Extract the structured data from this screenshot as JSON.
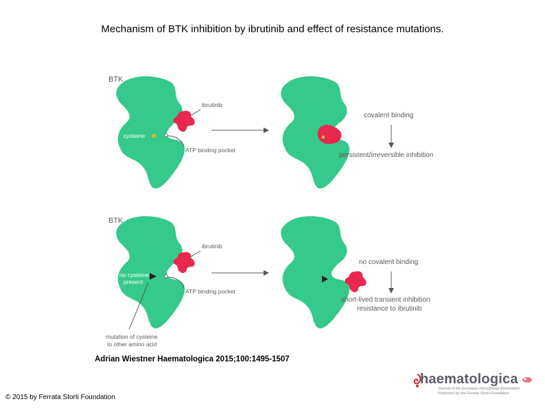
{
  "title": "Mechanism of BTK inhibition by ibrutinib and effect of resistance mutations.",
  "top_panel": {
    "protein_label": "BTK",
    "drug_label": "ibrutinib",
    "site_label": "cysteine",
    "pocket_label": "ATP binding pocket",
    "result_top": "covalent binding",
    "result_bottom": "persistent/irreversible inhibition"
  },
  "bottom_panel": {
    "protein_label": "BTK",
    "drug_label": "ibrutinib",
    "site_label_line1": "no cysteine",
    "site_label_line2": "present",
    "pocket_label": "ATP binding pocket",
    "mutation_line1": "mutation of cysteine",
    "mutation_line2": "to other amino acid",
    "result_top": "no covalent binding",
    "result_bottom_line1": "short-lived transient inhibition",
    "result_bottom_line2": "resistance to ibrutinib"
  },
  "citation": "Adrian Wiestner Haematologica 2015;100:1495-1507",
  "copyright": "© 2015 by Ferrata Storti Foundation",
  "logo": {
    "name": "haematologica",
    "subtitle_line1": "Journal of the European Hematology Association",
    "subtitle_line2": "Published by the Ferrata Storti Foundation"
  },
  "colors": {
    "protein": "#35c98c",
    "drug": "#e8284e",
    "cysteine": "#e8b21a",
    "text": "#5a5a5a",
    "arrow": "#555555"
  }
}
